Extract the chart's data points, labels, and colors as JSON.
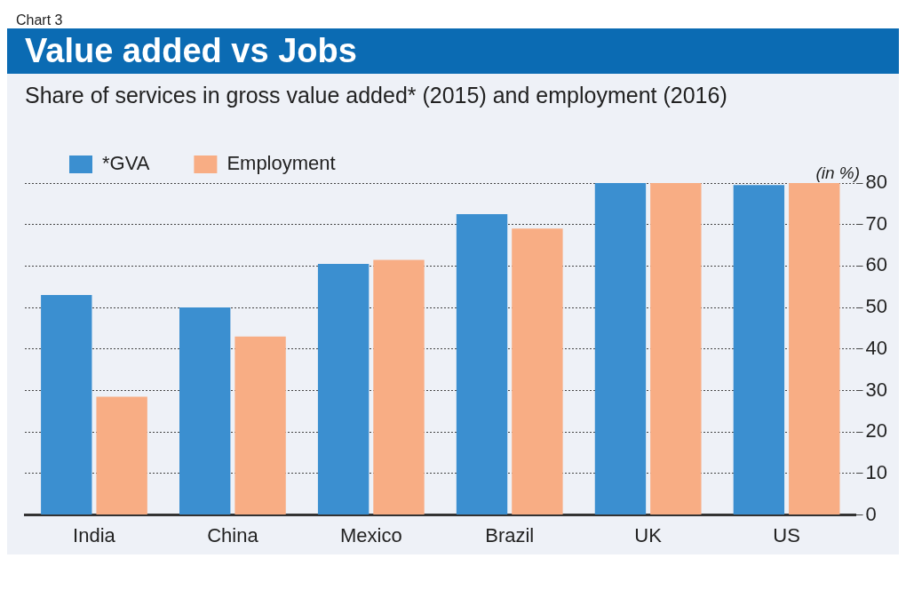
{
  "chart_data": {
    "type": "bar",
    "title": "Value added vs Jobs",
    "subtitle": "Share of services in gross value added* (2015) and employment (2016)",
    "ylabel": "(in %)",
    "annotations": [
      "Chart 3"
    ],
    "categories": [
      "India",
      "China",
      "Mexico",
      "Brazil",
      "UK",
      "US"
    ],
    "series": [
      {
        "name": "*GVA",
        "color": "#3b8fd0",
        "values": [
          53,
          50,
          60.5,
          72.5,
          80,
          79.5
        ]
      },
      {
        "name": "Employment",
        "color": "#f8ad84",
        "values": [
          28.5,
          43,
          61.5,
          69,
          80,
          80
        ]
      }
    ],
    "ylim": [
      0,
      80
    ],
    "yticks": [
      0,
      10,
      20,
      30,
      40,
      50,
      60,
      70,
      80
    ],
    "grid": "y",
    "legend": "top left"
  }
}
